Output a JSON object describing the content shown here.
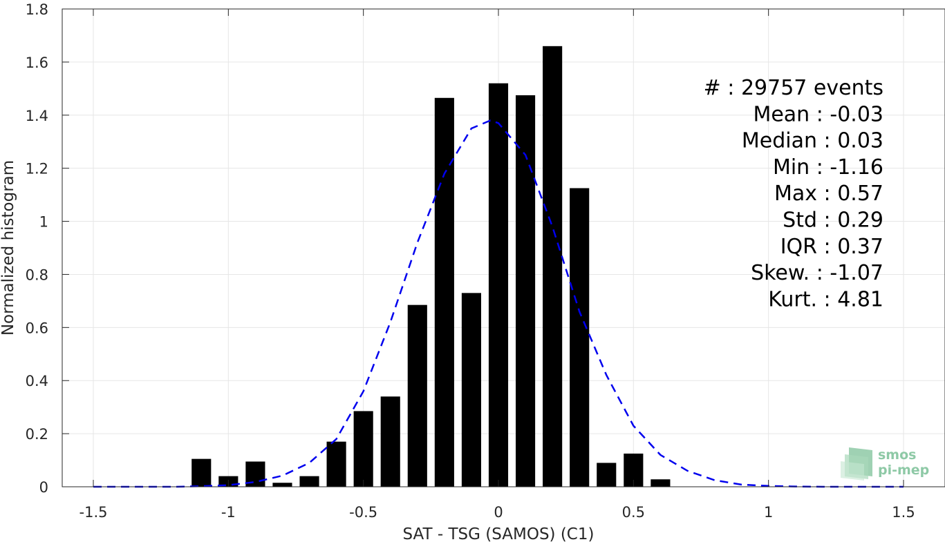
{
  "chart_data": {
    "type": "bar",
    "xlabel": "SAT - TSG (SAMOS) (C1)",
    "ylabel": "Normalized histogram",
    "xlim": [
      -1.5,
      1.5
    ],
    "ylim": [
      0,
      1.8
    ],
    "xticks": [
      -1.5,
      -1,
      -0.5,
      0,
      0.5,
      1,
      1.5
    ],
    "xtick_labels": [
      "-1.5",
      "-1",
      "-0.5",
      "0",
      "0.5",
      "1",
      "1.5"
    ],
    "yticks": [
      0,
      0.2,
      0.4,
      0.6,
      0.8,
      1,
      1.2,
      1.4,
      1.6,
      1.8
    ],
    "ytick_labels": [
      "0",
      "0.2",
      "0.4",
      "0.6",
      "0.8",
      "1",
      "1.2",
      "1.4",
      "1.6",
      "1.8"
    ],
    "grid": true,
    "bar_color": "#000000",
    "bars": {
      "x": [
        -1.1,
        -1.0,
        -0.9,
        -0.8,
        -0.7,
        -0.6,
        -0.5,
        -0.4,
        -0.3,
        -0.2,
        -0.1,
        0.0,
        0.1,
        0.2,
        0.3,
        0.4,
        0.5,
        0.6
      ],
      "values": [
        0.105,
        0.04,
        0.095,
        0.015,
        0.04,
        0.17,
        0.285,
        0.34,
        0.685,
        1.465,
        0.73,
        1.52,
        1.475,
        1.66,
        1.125,
        0.09,
        0.125,
        0.028
      ]
    },
    "fit_curve": {
      "style": "dashed",
      "color": "#0000ee",
      "x": [
        -1.5,
        -1.4,
        -1.3,
        -1.2,
        -1.1,
        -1.0,
        -0.9,
        -0.8,
        -0.7,
        -0.6,
        -0.5,
        -0.4,
        -0.3,
        -0.2,
        -0.1,
        -0.03,
        0.0,
        0.1,
        0.2,
        0.3,
        0.4,
        0.5,
        0.6,
        0.7,
        0.8,
        0.9,
        1.0,
        1.1,
        1.2,
        1.3,
        1.4,
        1.5
      ],
      "y": [
        0.0,
        0.0,
        0.0,
        0.0,
        0.002,
        0.006,
        0.018,
        0.042,
        0.09,
        0.18,
        0.36,
        0.62,
        0.92,
        1.18,
        1.35,
        1.38,
        1.37,
        1.25,
        0.98,
        0.66,
        0.42,
        0.23,
        0.12,
        0.06,
        0.025,
        0.008,
        0.003,
        0.001,
        0.0,
        0.0,
        0.0,
        0.0
      ]
    },
    "stats": [
      "#  : 29757 events",
      "Mean : -0.03",
      "Median : 0.03",
      "Min : -1.16",
      "Max : 0.57",
      "Std : 0.29",
      "IQR : 0.37",
      "Skew. : -1.07",
      "Kurt. : 4.81"
    ]
  },
  "logo": {
    "line1": "smos",
    "line2": "pi-mep",
    "color": "#8ec9a6"
  }
}
